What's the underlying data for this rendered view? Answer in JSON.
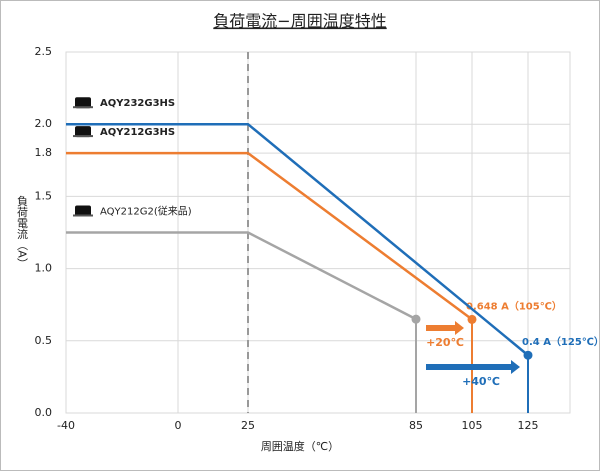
{
  "chart_data": {
    "type": "line",
    "title": "負荷電流−周囲温度特性",
    "x_label": "周囲温度（℃）",
    "y_label": "負荷電流（A）",
    "xlim": [
      -40,
      140
    ],
    "ylim": [
      0,
      2.5
    ],
    "xticks": [
      -40,
      0,
      25,
      85,
      105,
      125
    ],
    "yticks": [
      {
        "value": 0,
        "label": "0.0"
      },
      0.5,
      {
        "value": 1,
        "label": "1.0"
      },
      1.5,
      1.8,
      {
        "value": 2,
        "label": "2.0"
      },
      2.5
    ],
    "grid": true,
    "dashed_x": 25,
    "series": [
      {
        "name": "AQY232G3HS",
        "color": "#1f6eb8",
        "x": [
          -40,
          25,
          125
        ],
        "values": [
          2.0,
          2.0,
          0.4
        ],
        "end_label": "0.4 A（125℃）"
      },
      {
        "name": "AQY212G3HS",
        "color": "#ed7d31",
        "x": [
          -40,
          25,
          105
        ],
        "values": [
          1.8,
          1.8,
          0.648
        ],
        "end_label": "0.648 A（105℃）"
      },
      {
        "name": "AQY212G2(従来品)",
        "color": "#a5a5a5",
        "x": [
          -40,
          25,
          85
        ],
        "values": [
          1.25,
          1.25,
          0.65
        ]
      }
    ],
    "arrows": [
      {
        "text": "+20℃",
        "from": 85,
        "to": 105,
        "color": "#ed7d31"
      },
      {
        "text": "+40℃",
        "from": 85,
        "to": 125,
        "color": "#1f6eb8"
      }
    ]
  }
}
